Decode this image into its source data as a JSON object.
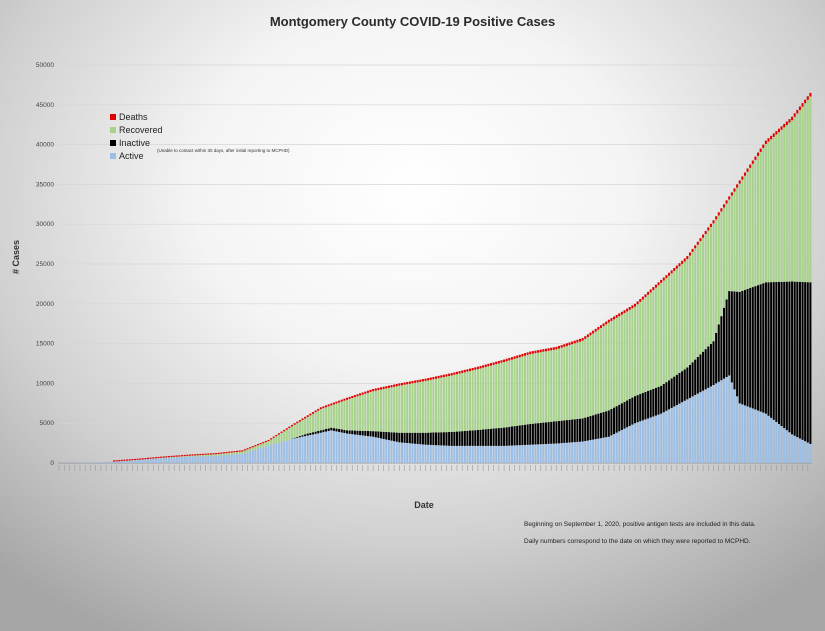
{
  "chart_data": {
    "type": "bar",
    "stacked": true,
    "title": "Montgomery County COVID-19 Positive Cases",
    "xlabel": "Date",
    "ylabel": "# Cases",
    "ylim": [
      0,
      50000
    ],
    "yticks": [
      "0",
      "5000",
      "10000",
      "15000",
      "20000",
      "25000",
      "30000",
      "35000",
      "40000",
      "45000",
      "50000"
    ],
    "grid": true,
    "legend_position": "upper-left",
    "x_tick_labels_legible": false,
    "series": [
      {
        "name": "Deaths",
        "color": "#e00000"
      },
      {
        "name": "Recovered",
        "color": "#a6d28c"
      },
      {
        "name": "Inactive",
        "color": "#000000"
      },
      {
        "name": "Active",
        "color": "#9dbee4"
      }
    ],
    "total_cases_keypoints": [
      [
        0,
        20
      ],
      [
        10,
        60
      ],
      [
        20,
        150
      ],
      [
        30,
        400
      ],
      [
        40,
        700
      ],
      [
        50,
        950
      ],
      [
        60,
        1150
      ],
      [
        70,
        1550
      ],
      [
        80,
        2900
      ],
      [
        90,
        5000
      ],
      [
        100,
        7000
      ],
      [
        110,
        8200
      ],
      [
        120,
        9300
      ],
      [
        130,
        10000
      ],
      [
        140,
        10600
      ],
      [
        150,
        11300
      ],
      [
        160,
        12100
      ],
      [
        170,
        13000
      ],
      [
        180,
        14000
      ],
      [
        190,
        14600
      ],
      [
        200,
        15700
      ],
      [
        210,
        18000
      ],
      [
        220,
        20000
      ],
      [
        230,
        23000
      ],
      [
        240,
        26000
      ],
      [
        250,
        30500
      ],
      [
        260,
        35500
      ],
      [
        270,
        40500
      ],
      [
        280,
        43500
      ],
      [
        287,
        46500
      ]
    ],
    "active_cases_keypoints": [
      [
        0,
        20
      ],
      [
        10,
        60
      ],
      [
        20,
        150
      ],
      [
        30,
        380
      ],
      [
        40,
        640
      ],
      [
        50,
        820
      ],
      [
        60,
        900
      ],
      [
        70,
        1150
      ],
      [
        80,
        2200
      ],
      [
        90,
        3100
      ],
      [
        100,
        3800
      ],
      [
        104,
        4100
      ],
      [
        110,
        3700
      ],
      [
        120,
        3300
      ],
      [
        130,
        2600
      ],
      [
        140,
        2300
      ],
      [
        150,
        2150
      ],
      [
        160,
        2150
      ],
      [
        170,
        2150
      ],
      [
        180,
        2300
      ],
      [
        190,
        2450
      ],
      [
        200,
        2700
      ],
      [
        210,
        3300
      ],
      [
        220,
        5000
      ],
      [
        230,
        6200
      ],
      [
        240,
        8000
      ],
      [
        250,
        9800
      ],
      [
        256,
        11000
      ],
      [
        260,
        7500
      ],
      [
        270,
        6200
      ],
      [
        280,
        3600
      ],
      [
        287,
        2400
      ]
    ],
    "inactive_cases_keypoints": [
      [
        0,
        0
      ],
      [
        60,
        0
      ],
      [
        75,
        0
      ],
      [
        88,
        0
      ],
      [
        95,
        250
      ],
      [
        100,
        300
      ],
      [
        110,
        400
      ],
      [
        120,
        700
      ],
      [
        130,
        1200
      ],
      [
        140,
        1500
      ],
      [
        150,
        1750
      ],
      [
        160,
        2000
      ],
      [
        170,
        2300
      ],
      [
        180,
        2600
      ],
      [
        190,
        2800
      ],
      [
        200,
        2900
      ],
      [
        210,
        3300
      ],
      [
        220,
        3400
      ],
      [
        230,
        3500
      ],
      [
        240,
        4000
      ],
      [
        250,
        5500
      ],
      [
        260,
        14000
      ],
      [
        270,
        16500
      ],
      [
        280,
        19200
      ],
      [
        287,
        20300
      ]
    ],
    "deaths_cases_keypoints": [
      [
        0,
        0
      ],
      [
        20,
        0
      ],
      [
        30,
        10
      ],
      [
        60,
        50
      ],
      [
        90,
        200
      ],
      [
        120,
        280
      ],
      [
        180,
        320
      ],
      [
        240,
        380
      ],
      [
        287,
        450
      ]
    ],
    "days": 288
  },
  "legend": {
    "items": [
      {
        "label": "Deaths",
        "color": "#e00000"
      },
      {
        "label": "Recovered",
        "color": "#a6d28c"
      },
      {
        "label": "Inactive",
        "color": "#000000"
      },
      {
        "label": "Active",
        "color": "#9dbee4"
      }
    ],
    "inactive_note": "(Unable to contact within 30 days, after initial reporting to MCPHD)"
  },
  "notes": {
    "note_1": "Beginning on September 1, 2020, positive antigen tests are included in this data.",
    "note_2": "Daily numbers correspond to the date on which they were reported to MCPHD."
  }
}
